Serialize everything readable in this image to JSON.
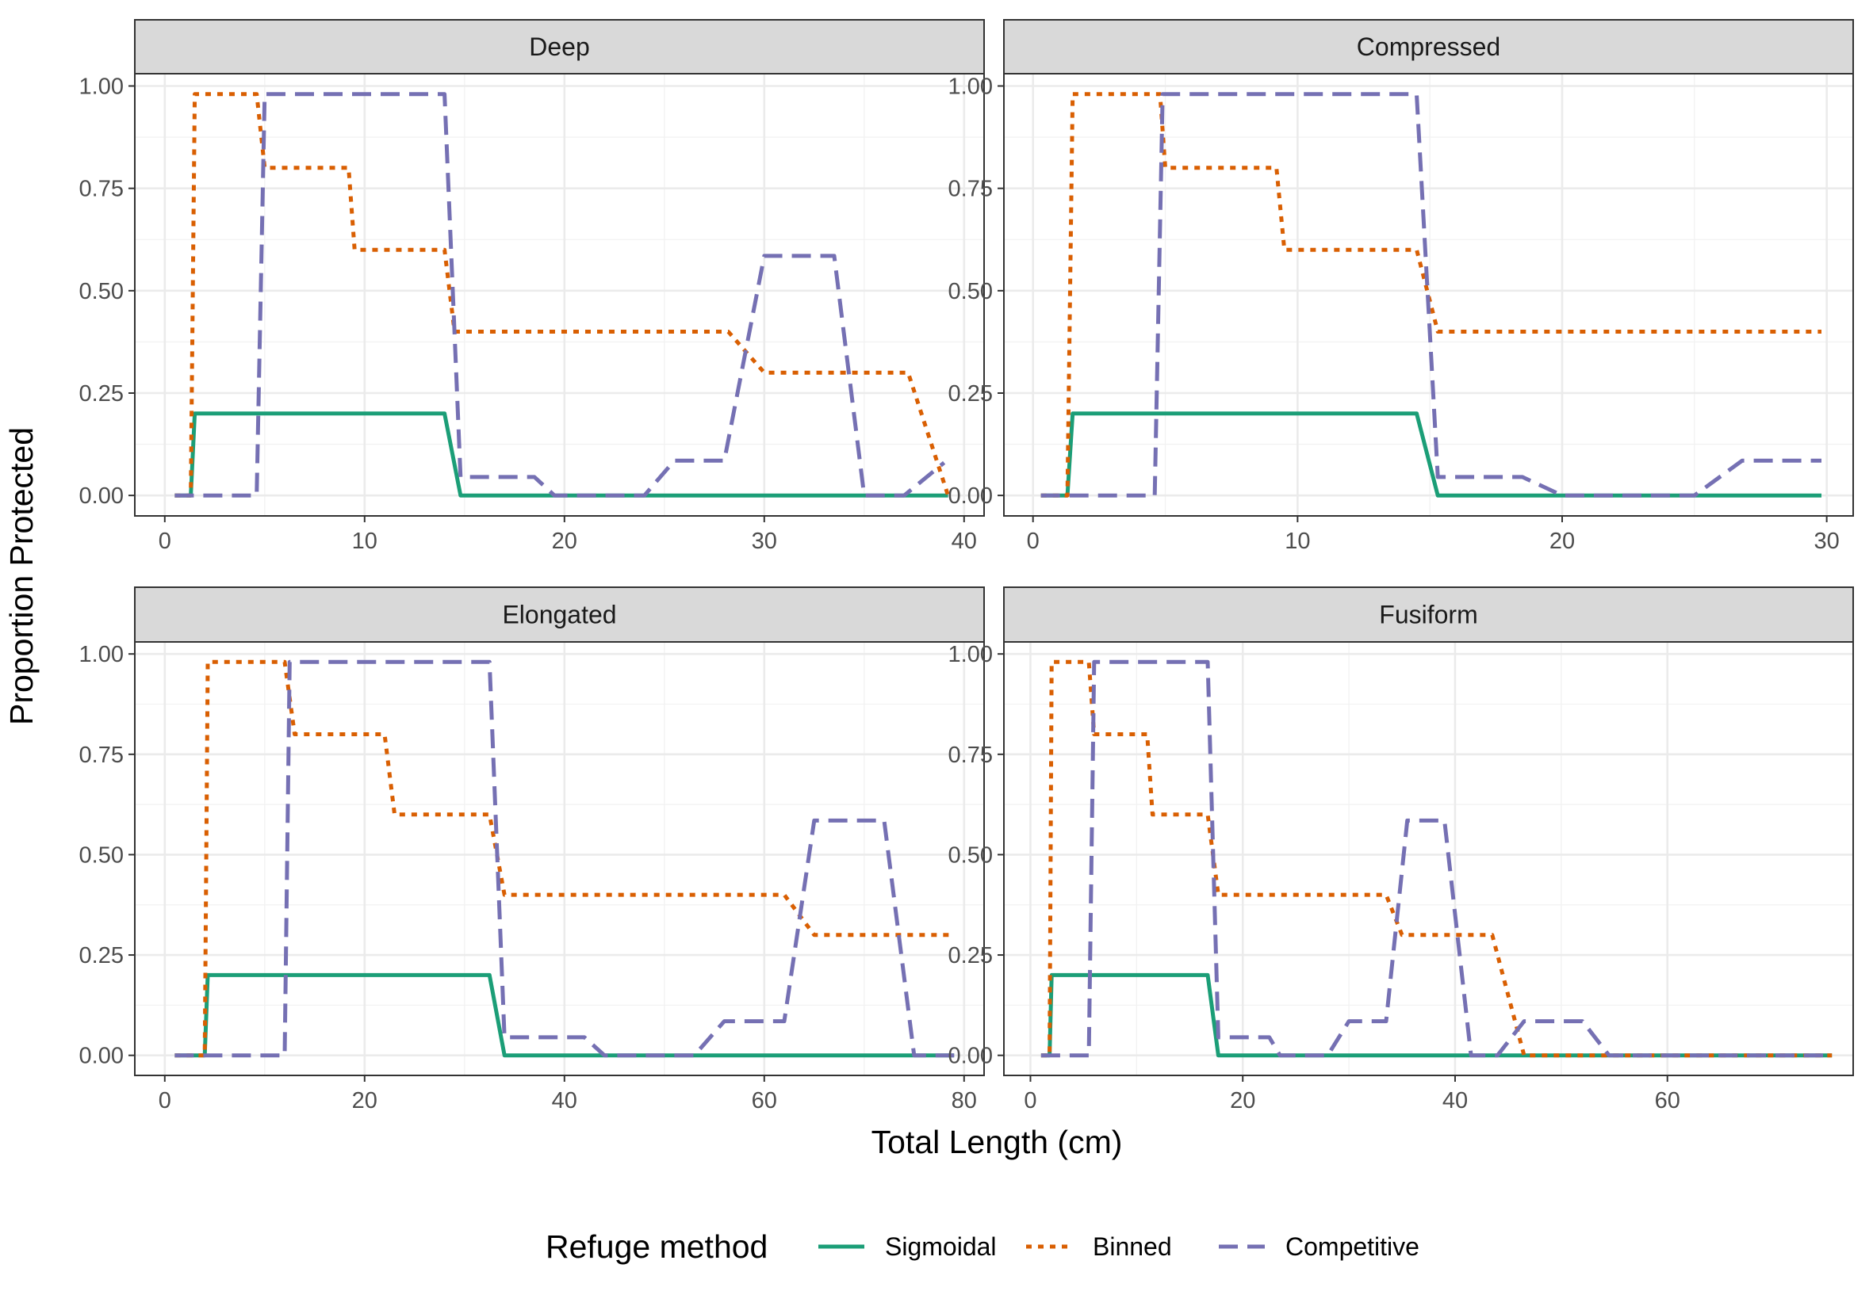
{
  "chart_data": {
    "type": "line",
    "ylabel": "Proportion Protected",
    "xlabel": "Total Length (cm)",
    "legend": {
      "title": "Refuge method",
      "placement": "bottom",
      "items": [
        {
          "name": "Sigmoidal",
          "color": "#1b9e77",
          "dash": "solid"
        },
        {
          "name": "Binned",
          "color": "#d95f02",
          "dash": "dotted"
        },
        {
          "name": "Competitive",
          "color": "#7570b3",
          "dash": "dashed"
        }
      ]
    },
    "ylim": [
      -0.05,
      1.03
    ],
    "yticks": [
      0,
      0.25,
      0.5,
      0.75,
      1
    ],
    "ytick_labels": [
      "0.00",
      "0.25",
      "0.50",
      "0.75",
      "1.00"
    ],
    "grid": true,
    "panels": [
      {
        "title": "Deep",
        "xlim": [
          -1.5,
          41
        ],
        "xticks": [
          0,
          10,
          20,
          30,
          40
        ],
        "xtick_labels": [
          "0",
          "10",
          "20",
          "30",
          "40"
        ],
        "series": [
          {
            "name": "Sigmoidal",
            "x": [
              0.5,
              1.3,
              1.5,
              14,
              14.8,
              39.2
            ],
            "y": [
              0,
              0,
              0.2,
              0.2,
              0,
              0
            ]
          },
          {
            "name": "Binned",
            "x": [
              0.5,
              1.3,
              1.5,
              4.6,
              5,
              9.2,
              9.5,
              14,
              14.5,
              28.2,
              30,
              37.2,
              39.2
            ],
            "y": [
              0,
              0,
              0.98,
              0.98,
              0.8,
              0.8,
              0.6,
              0.6,
              0.4,
              0.4,
              0.3,
              0.3,
              0
            ]
          },
          {
            "name": "Competitive",
            "x": [
              0.5,
              4.6,
              5,
              14,
              14.8,
              18.5,
              19.5,
              24,
              25.5,
              28,
              30,
              33.5,
              35,
              37,
              39
            ],
            "y": [
              0,
              0,
              0.98,
              0.98,
              0.045,
              0.045,
              0,
              0,
              0.085,
              0.085,
              0.585,
              0.585,
              0,
              0,
              0.08
            ]
          }
        ]
      },
      {
        "title": "Compressed",
        "xlim": [
          -1.1,
          31
        ],
        "xticks": [
          0,
          10,
          20,
          30
        ],
        "xtick_labels": [
          "0",
          "10",
          "20",
          "30"
        ],
        "series": [
          {
            "name": "Sigmoidal",
            "x": [
              0.3,
              1.3,
              1.5,
              14.5,
              15.3,
              29.8
            ],
            "y": [
              0,
              0,
              0.2,
              0.2,
              0,
              0
            ]
          },
          {
            "name": "Binned",
            "x": [
              0.3,
              1.3,
              1.5,
              4.8,
              5,
              9.2,
              9.5,
              14.5,
              15.3,
              29.8
            ],
            "y": [
              0,
              0,
              0.98,
              0.98,
              0.8,
              0.8,
              0.6,
              0.6,
              0.4,
              0.4
            ]
          },
          {
            "name": "Competitive",
            "x": [
              0.3,
              4.6,
              4.9,
              14.5,
              15.3,
              18.5,
              20,
              25,
              26.8,
              29.8
            ],
            "y": [
              0,
              0,
              0.98,
              0.98,
              0.045,
              0.045,
              0,
              0,
              0.085,
              0.085
            ]
          }
        ]
      },
      {
        "title": "Elongated",
        "xlim": [
          -3,
          82
        ],
        "xticks": [
          0,
          20,
          40,
          60,
          80
        ],
        "xtick_labels": [
          "0",
          "20",
          "40",
          "60",
          "80"
        ],
        "series": [
          {
            "name": "Sigmoidal",
            "x": [
              1,
              4,
              4.3,
              32.5,
              34,
              79
            ],
            "y": [
              0,
              0,
              0.2,
              0.2,
              0,
              0
            ]
          },
          {
            "name": "Binned",
            "x": [
              1,
              4,
              4.3,
              12,
              13,
              22,
              23,
              32.5,
              34,
              62,
              65,
              79
            ],
            "y": [
              0,
              0,
              0.98,
              0.98,
              0.8,
              0.8,
              0.6,
              0.6,
              0.4,
              0.4,
              0.3,
              0.3
            ]
          },
          {
            "name": "Competitive",
            "x": [
              1,
              12,
              12.5,
              32.5,
              34,
              42,
              44,
              53,
              56,
              62,
              65,
              72,
              75,
              79
            ],
            "y": [
              0,
              0,
              0.98,
              0.98,
              0.045,
              0.045,
              0,
              0,
              0.085,
              0.085,
              0.585,
              0.585,
              0,
              0
            ]
          }
        ]
      },
      {
        "title": "Fusiform",
        "xlim": [
          -2.5,
          77.5
        ],
        "xticks": [
          0,
          20,
          40,
          60
        ],
        "xtick_labels": [
          "0",
          "20",
          "40",
          "60"
        ],
        "series": [
          {
            "name": "Sigmoidal",
            "x": [
              1,
              1.8,
              2,
              16.7,
              17.7,
              75.5
            ],
            "y": [
              0,
              0,
              0.2,
              0.2,
              0,
              0
            ]
          },
          {
            "name": "Binned",
            "x": [
              1,
              1.8,
              2,
              5.5,
              6,
              11,
              11.5,
              16.7,
              17.7,
              33.5,
              35,
              43.5,
              46.5,
              75.5
            ],
            "y": [
              0,
              0,
              0.98,
              0.98,
              0.8,
              0.8,
              0.6,
              0.6,
              0.4,
              0.4,
              0.3,
              0.3,
              0,
              0
            ]
          },
          {
            "name": "Competitive",
            "x": [
              1,
              5.5,
              6,
              16.7,
              17.7,
              22.5,
              23.5,
              28,
              30,
              33.5,
              35.5,
              39,
              41.5,
              44,
              46.5,
              52,
              54.5,
              75.5
            ],
            "y": [
              0,
              0,
              0.98,
              0.98,
              0.045,
              0.045,
              0,
              0,
              0.085,
              0.085,
              0.585,
              0.585,
              0,
              0,
              0.085,
              0.085,
              0,
              0
            ]
          }
        ]
      }
    ]
  }
}
